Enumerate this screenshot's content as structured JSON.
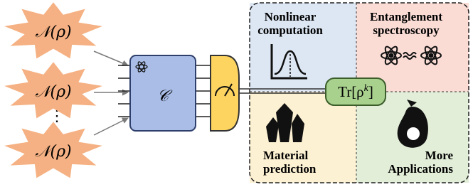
{
  "inputs": [
    {
      "label": "𝒩(ρ)"
    },
    {
      "label": "𝒩(ρ)"
    },
    {
      "label": "𝒩(ρ)"
    }
  ],
  "ellipsis": "⋮",
  "circuit": {
    "label": "𝒞"
  },
  "trace": {
    "base": "Tr[ρ",
    "sup": "k",
    "close": "]"
  },
  "applications": [
    {
      "lines": [
        "Nonlinear",
        "computation"
      ]
    },
    {
      "lines": [
        "Entanglement",
        "spectroscopy"
      ]
    },
    {
      "lines": [
        "Material",
        "prediction"
      ]
    },
    {
      "lines": [
        "More",
        "Applications"
      ]
    }
  ]
}
